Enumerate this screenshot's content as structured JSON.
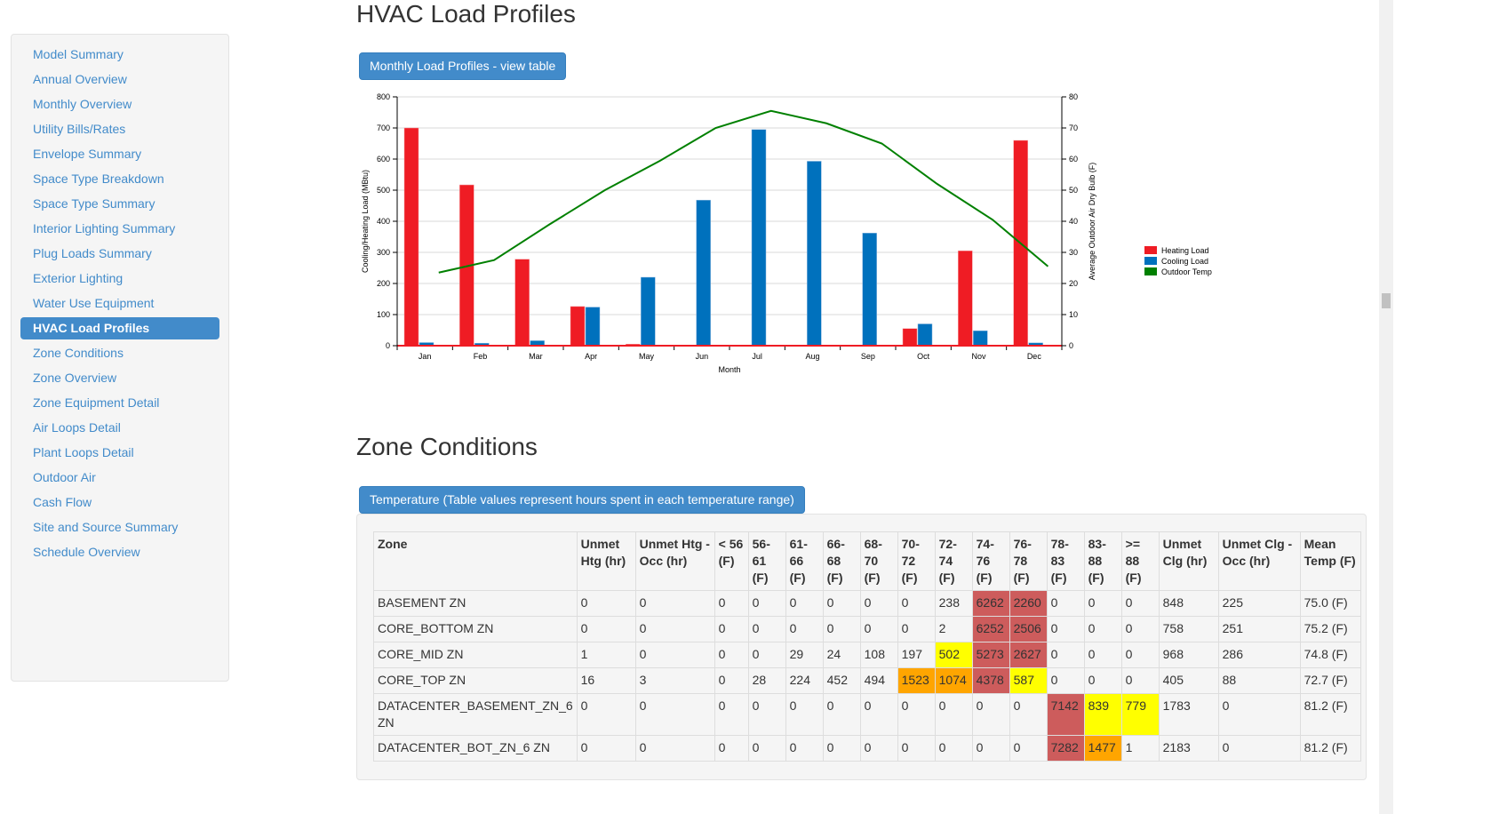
{
  "sidebar": {
    "items": [
      "Model Summary",
      "Annual Overview",
      "Monthly Overview",
      "Utility Bills/Rates",
      "Envelope Summary",
      "Space Type Breakdown",
      "Space Type Summary",
      "Interior Lighting Summary",
      "Plug Loads Summary",
      "Exterior Lighting",
      "Water Use Equipment",
      "HVAC Load Profiles",
      "Zone Conditions",
      "Zone Overview",
      "Zone Equipment Detail",
      "Air Loops Detail",
      "Plant Loops Detail",
      "Outdoor Air",
      "Cash Flow",
      "Site and Source Summary",
      "Schedule Overview"
    ],
    "active": "HVAC Load Profiles"
  },
  "hvac": {
    "title": "HVAC Load Profiles",
    "button": "Monthly Load Profiles - view table"
  },
  "chart_data": {
    "type": "bar",
    "categories": [
      "Jan",
      "Feb",
      "Mar",
      "Apr",
      "May",
      "Jun",
      "Jul",
      "Aug",
      "Sep",
      "Oct",
      "Nov",
      "Dec"
    ],
    "series": [
      {
        "name": "Heating Load",
        "type": "bar",
        "axis": "left",
        "color": "#ef1c24",
        "values": [
          700,
          517,
          278,
          126,
          5,
          0,
          0,
          0,
          1,
          55,
          305,
          660
        ]
      },
      {
        "name": "Cooling Load",
        "type": "bar",
        "axis": "left",
        "color": "#0071bd",
        "values": [
          10,
          8,
          16,
          124,
          220,
          468,
          695,
          593,
          362,
          70,
          48,
          9
        ]
      },
      {
        "name": "Outdoor Temp",
        "type": "line",
        "axis": "right",
        "color": "#008000",
        "values": [
          23.5,
          27.5,
          39,
          50,
          59.5,
          70,
          75.5,
          71.5,
          65,
          52,
          40.5,
          25.5
        ]
      }
    ],
    "xlabel": "Month",
    "ylabel": "Cooling/Heating Load (MBtu)",
    "y2label": "Average Outdoor Air Dry Bulb (F)",
    "ylim": [
      0,
      800
    ],
    "yticks": [
      "0",
      "100",
      "200",
      "300",
      "400",
      "500",
      "600",
      "700",
      "800"
    ],
    "y2lim": [
      0,
      80
    ],
    "y2ticks": [
      "0",
      "10",
      "20",
      "30",
      "40",
      "50",
      "60",
      "70",
      "80"
    ],
    "grid": true,
    "legend": "right"
  },
  "zone": {
    "title": "Zone Conditions",
    "button": "Temperature (Table values represent hours spent in each temperature range)",
    "headers": [
      "Zone",
      "Unmet Htg (hr)",
      "Unmet Htg - Occ (hr)",
      "< 56 (F)",
      "56-61 (F)",
      "61-66 (F)",
      "66-68 (F)",
      "68-70 (F)",
      "70-72 (F)",
      "72-74 (F)",
      "74-76 (F)",
      "76-78 (F)",
      "78-83 (F)",
      "83-88 (F)",
      ">= 88 (F)",
      "Unmet Clg (hr)",
      "Unmet Clg - Occ (hr)",
      "Mean Temp (F)"
    ],
    "colors": {
      "red": "#cd5c5c",
      "orange": "#ffa500",
      "yellow": "#ffff00"
    },
    "rows": [
      {
        "cells": [
          "BASEMENT ZN",
          "0",
          "0",
          "0",
          "0",
          "0",
          "0",
          "0",
          "0",
          "238",
          "6262",
          "2260",
          "0",
          "0",
          "0",
          "848",
          "225",
          "75.0 (F)"
        ],
        "hl": {
          "10": "red",
          "11": "red"
        }
      },
      {
        "cells": [
          "CORE_BOTTOM ZN",
          "0",
          "0",
          "0",
          "0",
          "0",
          "0",
          "0",
          "0",
          "2",
          "6252",
          "2506",
          "0",
          "0",
          "0",
          "758",
          "251",
          "75.2 (F)"
        ],
        "hl": {
          "10": "red",
          "11": "red"
        }
      },
      {
        "cells": [
          "CORE_MID ZN",
          "1",
          "0",
          "0",
          "0",
          "29",
          "24",
          "108",
          "197",
          "502",
          "5273",
          "2627",
          "0",
          "0",
          "0",
          "968",
          "286",
          "74.8 (F)"
        ],
        "hl": {
          "9": "yellow",
          "10": "red",
          "11": "red"
        }
      },
      {
        "cells": [
          "CORE_TOP ZN",
          "16",
          "3",
          "0",
          "28",
          "224",
          "452",
          "494",
          "1523",
          "1074",
          "4378",
          "587",
          "0",
          "0",
          "0",
          "405",
          "88",
          "72.7 (F)"
        ],
        "hl": {
          "8": "orange",
          "9": "orange",
          "10": "red",
          "11": "yellow"
        }
      },
      {
        "cells": [
          "DATACENTER_BASEMENT_ZN_6 ZN",
          "0",
          "0",
          "0",
          "0",
          "0",
          "0",
          "0",
          "0",
          "0",
          "0",
          "0",
          "7142",
          "839",
          "779",
          "1783",
          "0",
          "81.2 (F)"
        ],
        "hl": {
          "12": "red",
          "13": "yellow",
          "14": "yellow"
        }
      },
      {
        "cells": [
          "DATACENTER_BOT_ZN_6 ZN",
          "0",
          "0",
          "0",
          "0",
          "0",
          "0",
          "0",
          "0",
          "0",
          "0",
          "0",
          "7282",
          "1477",
          "1",
          "2183",
          "0",
          "81.2 (F)"
        ],
        "hl": {
          "12": "red",
          "13": "orange"
        }
      }
    ]
  }
}
